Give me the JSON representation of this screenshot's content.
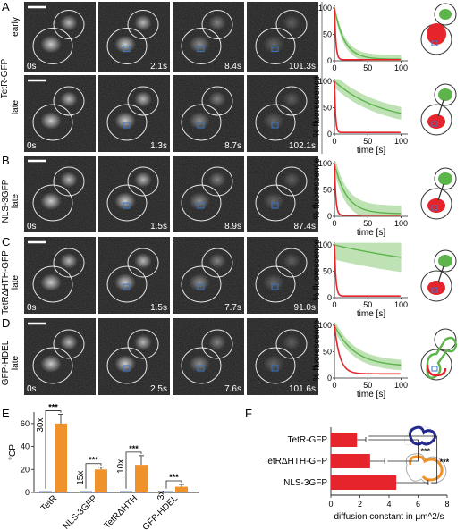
{
  "panels": {
    "A": "A",
    "B": "B",
    "C": "C",
    "D": "D",
    "E": "E",
    "F": "F"
  },
  "rows": [
    {
      "id": "A-early",
      "construct": "TetR-GFP",
      "stage": "early",
      "times": [
        "0s",
        "2.1s",
        "8.4s",
        "101.3s"
      ]
    },
    {
      "id": "A-late",
      "construct": "",
      "stage": "late",
      "times": [
        "0s",
        "1.3s",
        "8.7s",
        "102.1s"
      ]
    },
    {
      "id": "B",
      "construct": "NLS-3GFP",
      "stage": "late",
      "times": [
        "0s",
        "1.5s",
        "8.9s",
        "87.4s"
      ]
    },
    {
      "id": "C",
      "construct": "TetRΔHTH-GFP",
      "stage": "late",
      "times": [
        "0s",
        "1.5s",
        "7.7s",
        "91.0s"
      ]
    },
    {
      "id": "D",
      "construct": "GFP-HDEL",
      "stage": "late",
      "times": [
        "0s",
        "2.5s",
        "7.6s",
        "101.6s"
      ]
    }
  ],
  "colors": {
    "green": "#5cb44a",
    "green_band": "#a8d89b",
    "red": "#e5242b",
    "blue": "#3a76c4",
    "orange": "#f0922b",
    "navy": "#23288f"
  },
  "curves": {
    "ylabel": "% fluorescence",
    "xlabel": "time [s]",
    "xticks": [
      0,
      50,
      100
    ],
    "yticks": [
      0,
      50,
      100
    ],
    "series": [
      {
        "row": "A-early",
        "green_tau": 15,
        "green_plateau": 3,
        "green_band": 8,
        "red_tau": 2,
        "red_plateau": 2
      },
      {
        "row": "A-late",
        "green_tau": 70,
        "green_plateau": 20,
        "green_band": 12,
        "red_tau": 1.5,
        "red_plateau": 3
      },
      {
        "row": "B",
        "green_tau": 18,
        "green_plateau": 5,
        "green_band": 15,
        "red_tau": 2,
        "red_plateau": 2
      },
      {
        "row": "C",
        "green_tau": 200,
        "green_plateau": 40,
        "green_band": 28,
        "red_tau": 2,
        "red_plateau": 3
      },
      {
        "row": "D",
        "green_tau": 30,
        "green_plateau": 22,
        "green_band": 10,
        "red_tau": 8,
        "red_plateau": 8
      }
    ]
  },
  "chart_data": [
    {
      "type": "bar",
      "panel": "E",
      "ylabel": "°CP",
      "categories": [
        "TetR",
        "NLS-3GFP",
        "TetRΔHTH",
        "GFP-HDEL"
      ],
      "series": [
        {
          "values": [
            1,
            1,
            1,
            1
          ],
          "color": "#23288f"
        },
        {
          "values": [
            60,
            20,
            24,
            5
          ],
          "errors": [
            8,
            2,
            8,
            2
          ],
          "color": "#f0922b"
        }
      ],
      "fold_labels": [
        "30x",
        "15x",
        "10x",
        "3x"
      ],
      "significance": [
        "***",
        "***",
        "***",
        "***"
      ],
      "yticks": [
        0,
        20,
        40,
        60
      ],
      "ylim": [
        0,
        70
      ]
    },
    {
      "type": "bar",
      "panel": "F",
      "orientation": "horizontal",
      "xlabel": "diffusion constant in µm^2/s",
      "categories": [
        "TetR-GFP",
        "TetRΔHTH-GFP",
        "NLS-3GFP"
      ],
      "values": [
        1.8,
        2.7,
        4.5
      ],
      "errors": [
        0.6,
        1.0,
        2.2
      ],
      "xticks": [
        0,
        2,
        4,
        6,
        8
      ],
      "xlim": [
        0,
        8
      ],
      "significance": [
        "***",
        "***"
      ]
    }
  ]
}
